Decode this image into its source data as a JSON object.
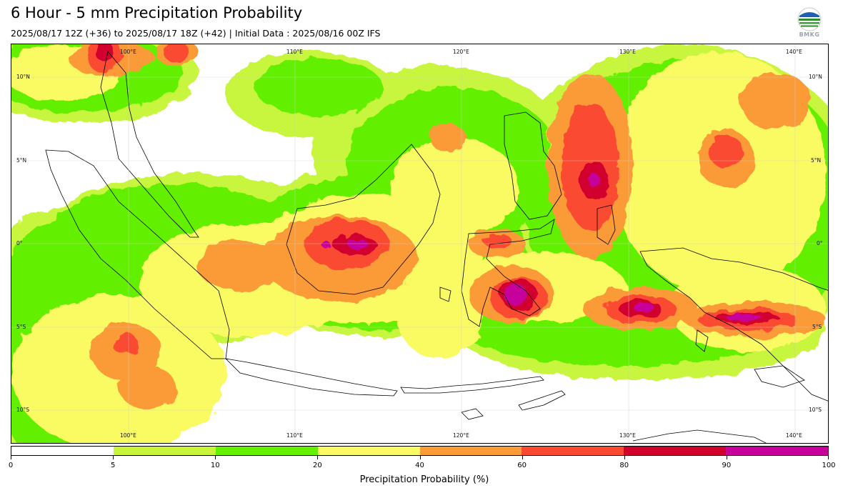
{
  "title": "6 Hour - 5 mm Precipitation Probability",
  "subtitle": "2025/08/17 12Z (+36) to 2025/08/17 18Z (+42) | Initial Data : 2025/08/16 00Z IFS",
  "logo_text": "BMKG",
  "map": {
    "lon_labels_top": [
      "100°E",
      "110°E",
      "120°E",
      "130°E",
      "140°E"
    ],
    "lon_labels_bottom": [
      "100°E",
      "110°E",
      "120°E",
      "130°E",
      "140°E"
    ],
    "lat_labels_left": [
      "10°N",
      "5°N",
      "0°",
      "5°S",
      "10°S"
    ],
    "lat_labels_right": [
      "10°N",
      "5°N",
      "0°",
      "5°S",
      "10°S"
    ]
  },
  "colorbar": {
    "title": "Precipitation Probability (%)",
    "ticks": [
      "0",
      "5",
      "10",
      "20",
      "40",
      "60",
      "80",
      "90",
      "100"
    ],
    "colors": [
      "#ffffff",
      "#c8f53c",
      "#64f000",
      "#fafa64",
      "#fa9b37",
      "#fa4b32",
      "#d2002d",
      "#c8009b"
    ]
  }
}
